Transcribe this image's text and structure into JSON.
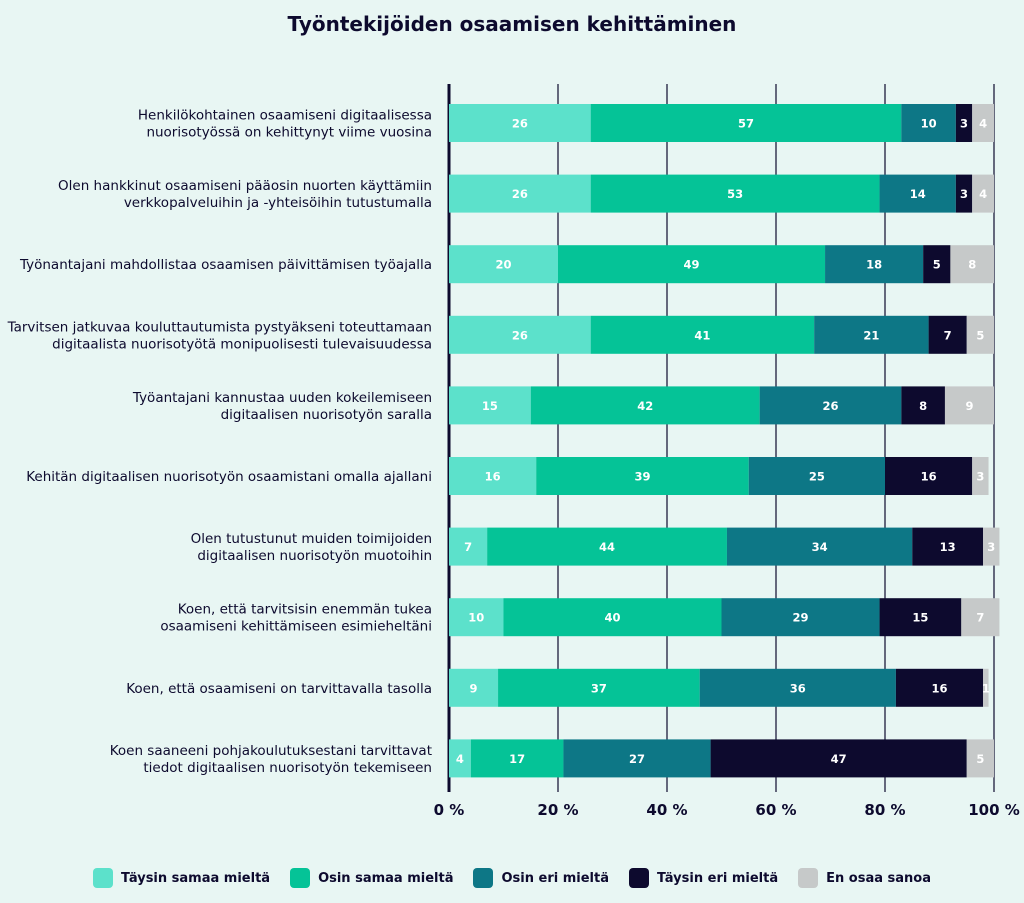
{
  "chart_data": {
    "type": "bar",
    "orientation": "horizontal",
    "stacked": true,
    "title": "Työntekijöiden osaamisen kehittäminen",
    "categories": [
      [
        "Henkilökohtainen osaamiseni digitaalisessa",
        "nuorisotyössä on kehittynyt viime vuosina"
      ],
      [
        "Olen hankkinut osaamiseni pääosin nuorten käyttämiin",
        "verkkopalveluihin ja -yhteisöihin tutustumalla"
      ],
      [
        "Työnantajani mahdollistaa osaamisen päivittämisen työajalla"
      ],
      [
        "Tarvitsen jatkuvaa kouluttautumista pystyäkseni toteuttamaan",
        "digitaalista nuorisotyötä monipuolisesti tulevaisuudessa"
      ],
      [
        "Työantajani kannustaa uuden kokeilemiseen",
        "digitaalisen nuorisotyön saralla"
      ],
      [
        "Kehitän digitaalisen nuorisotyön osaamistani omalla ajallani"
      ],
      [
        "Olen tutustunut muiden toimijoiden",
        "digitaalisen nuorisotyön muotoihin"
      ],
      [
        "Koen, että tarvitsisin enemmän tukea",
        "osaamiseni kehittämiseen esimieheltäni"
      ],
      [
        "Koen, että osaamiseni on tarvittavalla tasolla"
      ],
      [
        "Koen saaneeni pohjakoulutuksestani tarvittavat",
        "tiedot digitaalisen nuorisotyön tekemiseen"
      ]
    ],
    "series": [
      {
        "name": "Täysin samaa mieltä",
        "color": "#5ce1cb",
        "values": [
          26,
          26,
          20,
          26,
          15,
          16,
          7,
          10,
          9,
          4
        ]
      },
      {
        "name": "Osin samaa mieltä",
        "color": "#05c397",
        "values": [
          57,
          53,
          49,
          41,
          42,
          39,
          44,
          40,
          37,
          17
        ]
      },
      {
        "name": "Osin eri mieltä",
        "color": "#0d7786",
        "values": [
          10,
          14,
          18,
          21,
          26,
          25,
          34,
          29,
          36,
          27
        ]
      },
      {
        "name": "Täysin eri mieltä",
        "color": "#0d0a2e",
        "values": [
          3,
          3,
          5,
          7,
          8,
          16,
          13,
          15,
          16,
          47
        ]
      },
      {
        "name": "En osaa sanoa",
        "color": "#c6c9c9",
        "values": [
          4,
          4,
          8,
          5,
          9,
          3,
          3,
          7,
          1,
          5
        ]
      }
    ],
    "xlim": [
      0,
      100
    ],
    "xticks": [
      "0 %",
      "20 %",
      "40 %",
      "60 %",
      "80 %",
      "100 %"
    ],
    "grid": true,
    "legend_position": "bottom"
  }
}
